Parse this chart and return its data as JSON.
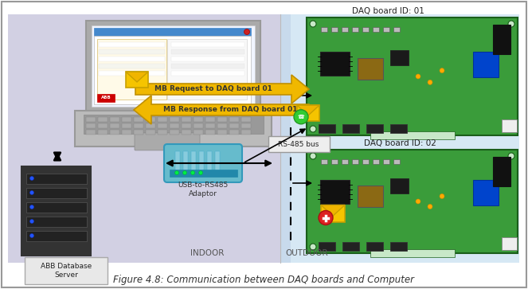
{
  "title": "Figure 4.8: Communication between DAQ boards and Computer",
  "title_fontsize": 8.5,
  "fig_width": 6.63,
  "fig_height": 3.63,
  "bg_color": "#ffffff",
  "border_color": "#999999",
  "indoor_bg": "#cbc8de",
  "outdoor_bg": "#c5dff0",
  "daq_board1_label": "DAQ board ID: 01",
  "daq_board2_label": "DAQ board ID: 02",
  "usb_label": "USB-to-RS485\nAdaptor",
  "server_label": "ABB Database\nServer",
  "rs485_label": "RS-485 bus",
  "indoor_label": "INDOOR",
  "outdoor_label": "OUTDOOR",
  "arrow1_label": "MB Request to DAQ board 01",
  "arrow2_label": "MB Response from DAQ board 01",
  "arrow_color": "#f0b800",
  "arrow_edge_color": "#c09000",
  "pcb_color": "#3a9c3a",
  "pcb_edge": "#1a5e1a",
  "pcb_dark": "#2a7a2a"
}
